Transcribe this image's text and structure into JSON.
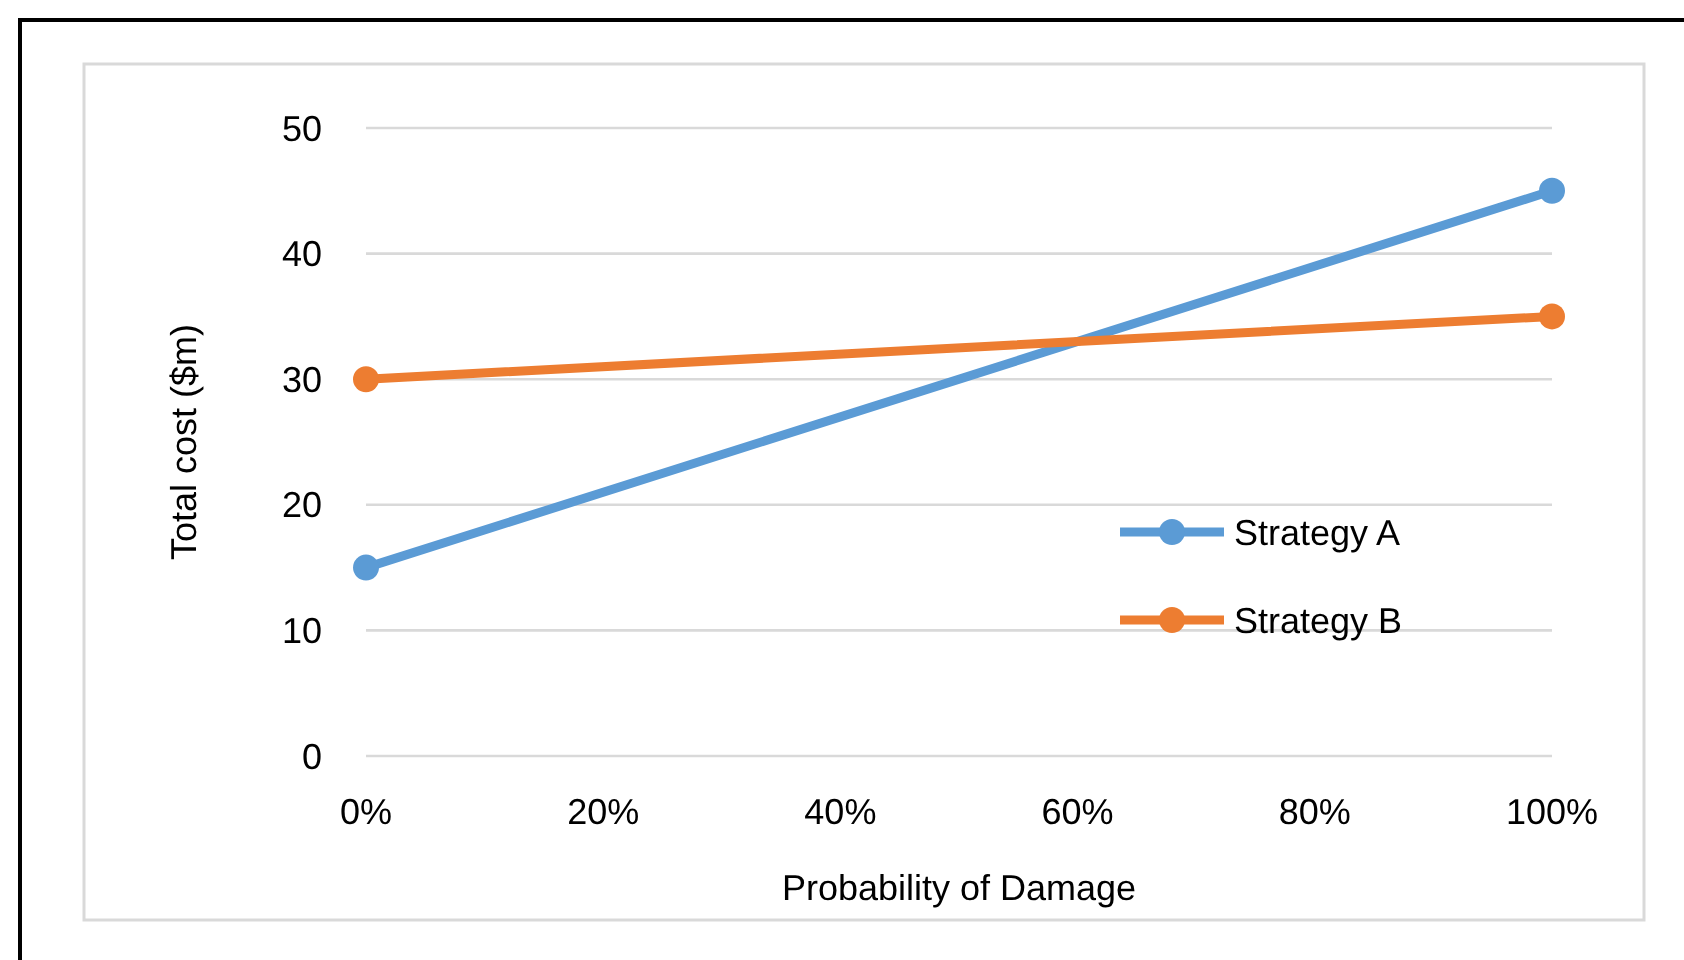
{
  "chart_data": {
    "type": "line",
    "xlabel": "Probability of Damage",
    "ylabel": "Total cost ($m)",
    "x": [
      0,
      100
    ],
    "series": [
      {
        "name": "Strategy A",
        "color": "#5b9bd5",
        "values": [
          15,
          45
        ]
      },
      {
        "name": "Strategy B",
        "color": "#ed7d31",
        "values": [
          30,
          35
        ]
      }
    ],
    "xlim": [
      0,
      100
    ],
    "xticks": [
      {
        "value": 0,
        "label": "0%"
      },
      {
        "value": 20,
        "label": "20%"
      },
      {
        "value": 40,
        "label": "40%"
      },
      {
        "value": 60,
        "label": "60%"
      },
      {
        "value": 80,
        "label": "80%"
      },
      {
        "value": 100,
        "label": "100%"
      }
    ],
    "ylim": [
      0,
      50
    ],
    "yticks": [
      0,
      10,
      20,
      30,
      40,
      50
    ],
    "grid": "y",
    "legend": "right",
    "marker": "circle",
    "line_style": "solid"
  }
}
